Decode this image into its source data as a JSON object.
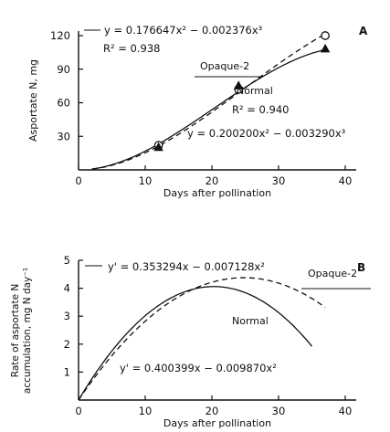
{
  "chart_data": [
    {
      "panel": "A",
      "type": "line",
      "xlabel": "Days after pollination",
      "ylabel": "Asportate N, mg",
      "xlim": [
        0,
        40
      ],
      "ylim": [
        0,
        120
      ],
      "xticks": [
        0,
        10,
        20,
        30,
        40
      ],
      "yticks": [
        30,
        60,
        90,
        120
      ],
      "series": [
        {
          "name": "Opaque-2",
          "style": "dashed",
          "marker": "circle",
          "coef": [
            0.176647,
            -0.002376
          ],
          "x": [
            12,
            24,
            37
          ],
          "y": [
            22,
            72,
            120
          ]
        },
        {
          "name": "Normal",
          "style": "solid",
          "marker": "triangle",
          "coef": [
            0.2002,
            -0.00329
          ],
          "x": [
            12,
            24,
            37
          ],
          "y": [
            20,
            75,
            108
          ]
        }
      ],
      "annotations": [
        "y = 0.176647x² − 0.002376x³",
        "R² = 0.938",
        "R² = 0.940",
        "y = 0.200200x² − 0.003290x³"
      ]
    },
    {
      "panel": "B",
      "type": "line",
      "xlabel": "Days after pollination",
      "ylabel_line1": "Rate of asportate N",
      "ylabel_line2": "accumulation, mg N day⁻¹",
      "xlim": [
        0,
        40
      ],
      "ylim": [
        0,
        5
      ],
      "xticks": [
        0,
        10,
        20,
        30,
        40
      ],
      "yticks": [
        1,
        2,
        3,
        4,
        5
      ],
      "series": [
        {
          "name": "Opaque-2",
          "style": "dashed",
          "coef": [
            0.353294,
            -0.007128
          ],
          "x_range": [
            0,
            37
          ]
        },
        {
          "name": "Normal",
          "style": "solid",
          "coef": [
            0.400399,
            -0.00987
          ],
          "x_range": [
            0,
            35
          ]
        }
      ],
      "annotations": [
        "y' = 0.353294x − 0.007128x²",
        "y' = 0.400399x − 0.009870x²"
      ]
    }
  ]
}
